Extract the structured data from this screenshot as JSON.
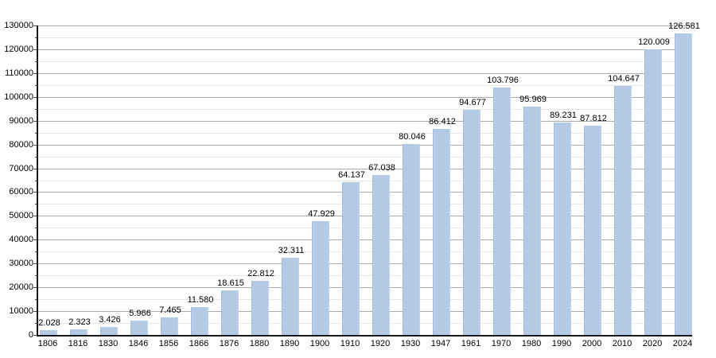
{
  "chart_data": {
    "type": "bar",
    "title": "",
    "xlabel": "",
    "ylabel": "",
    "categories": [
      "1806",
      "1816",
      "1830",
      "1846",
      "1856",
      "1866",
      "1876",
      "1880",
      "1890",
      "1900",
      "1910",
      "1920",
      "1930",
      "1947",
      "1961",
      "1970",
      "1980",
      "1990",
      "2000",
      "2010",
      "2020",
      "2024"
    ],
    "values": [
      2028,
      2323,
      3426,
      5966,
      7465,
      11580,
      18615,
      22812,
      32311,
      47929,
      64137,
      67038,
      80046,
      86412,
      94677,
      103796,
      95969,
      89231,
      87812,
      104647,
      120009,
      126581
    ],
    "bar_labels": [
      "2.028",
      "2.323",
      "3.426",
      "5.966",
      "7.465",
      "11.580",
      "18.615",
      "22.812",
      "32.311",
      "47.929",
      "64.137",
      "67.038",
      "80.046",
      "86.412",
      "94.677",
      "103.796",
      "95.969",
      "89.231",
      "87.812",
      "104.647",
      "120.009",
      "126.581"
    ],
    "ylim": [
      0,
      130000
    ],
    "y_major_step": 10000,
    "y_minor_step": 5000,
    "y_tick_labels": [
      "0",
      "10000",
      "20000",
      "30000",
      "40000",
      "50000",
      "60000",
      "70000",
      "80000",
      "90000",
      "100000",
      "110000",
      "120000",
      "130000"
    ],
    "grid": "on",
    "legend_position": "none",
    "bar_color": "#b5cbe5",
    "major_grid_color": "#ababab",
    "minor_grid_color": "#e7e7e7",
    "axis_color": "#1a1a1a",
    "text_color": "#000000"
  }
}
